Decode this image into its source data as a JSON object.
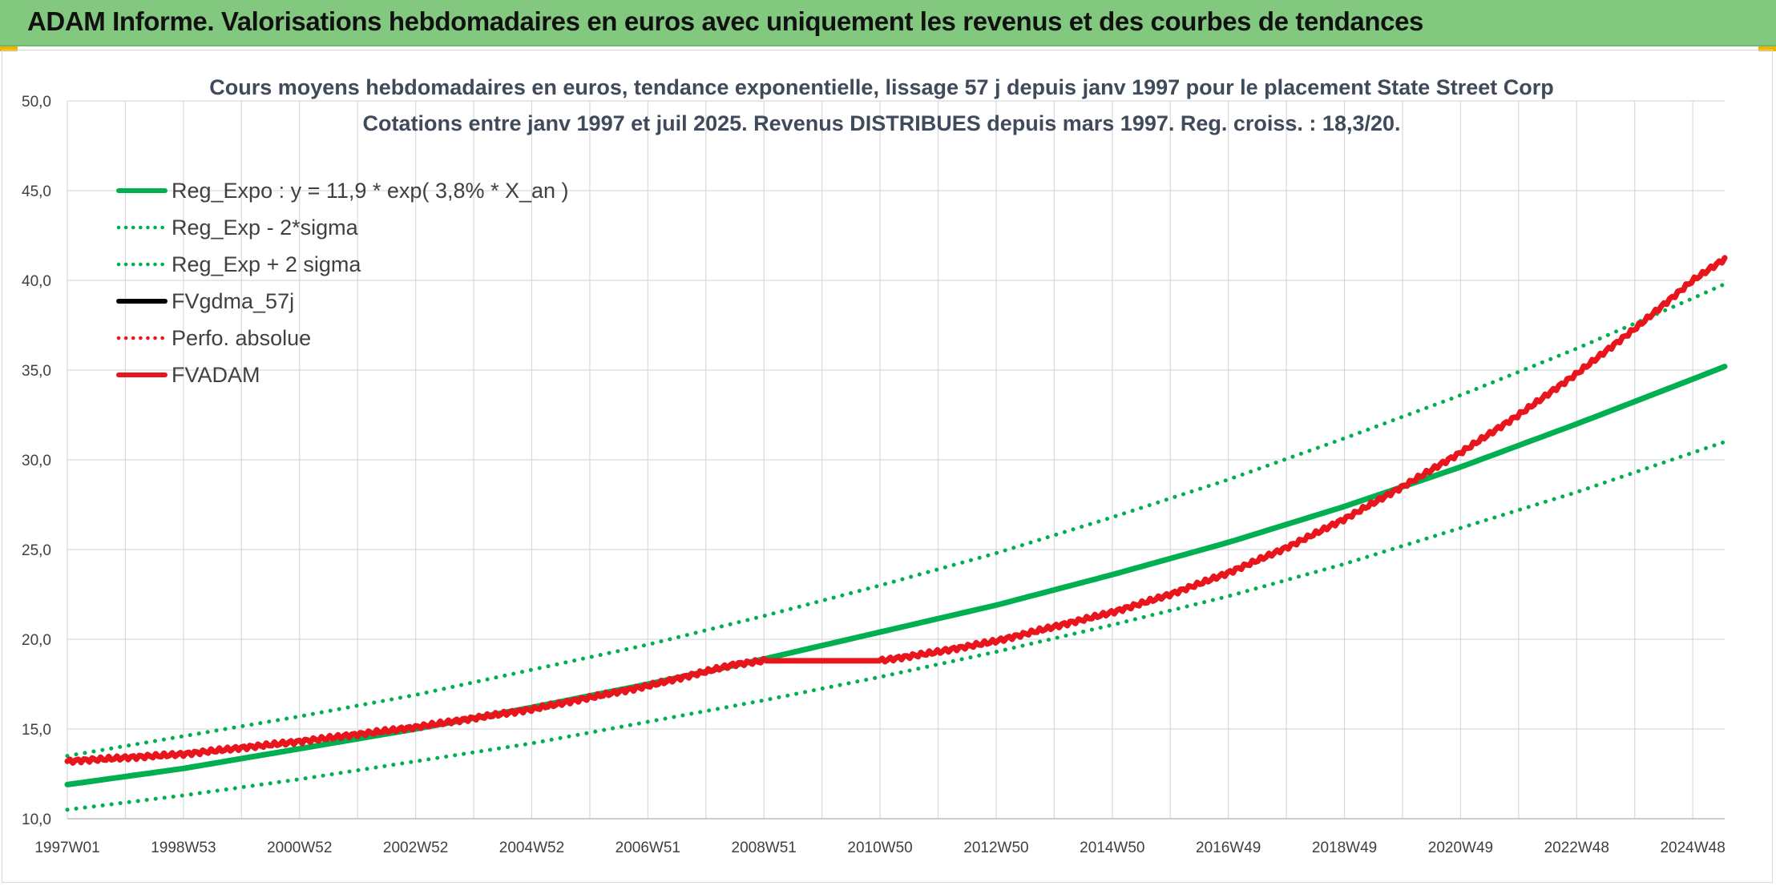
{
  "header": {
    "title": "ADAM Informe. Valorisations hebdomadaires en euros avec uniquement les revenus et des courbes de tendances"
  },
  "colors": {
    "banner": "#82c97f",
    "regression": "#00b050",
    "fvadam": "#e8161c",
    "fvgdma": "#000000",
    "perfo": "#e8161c",
    "grid": "#d9d9d9"
  },
  "chart_data": {
    "type": "line",
    "title": [
      "Cours moyens hebdomadaires en euros, tendance exponentielle, lissage 57 j depuis janv 1997 pour le placement State Street Corp",
      "Cotations entre janv 1997 et juil 2025. Revenus DISTRIBUES depuis mars 1997. Reg. croiss. : 18,3/20."
    ],
    "xlabel": "",
    "ylabel": "",
    "ylim": [
      10,
      50
    ],
    "yticks": [
      "10,0",
      "15,0",
      "20,0",
      "25,0",
      "30,0",
      "35,0",
      "40,0",
      "45,0",
      "50,0"
    ],
    "xlim": [
      1997.0,
      2025.55
    ],
    "xticks": [
      {
        "label": "1997W01",
        "x": 1997.0
      },
      {
        "label": "1998W53",
        "x": 1999.0
      },
      {
        "label": "2000W52",
        "x": 2001.0
      },
      {
        "label": "2002W52",
        "x": 2003.0
      },
      {
        "label": "2004W52",
        "x": 2005.0
      },
      {
        "label": "2006W51",
        "x": 2007.0
      },
      {
        "label": "2008W51",
        "x": 2009.0
      },
      {
        "label": "2010W50",
        "x": 2011.0
      },
      {
        "label": "2012W50",
        "x": 2013.0
      },
      {
        "label": "2014W50",
        "x": 2015.0
      },
      {
        "label": "2016W49",
        "x": 2017.0
      },
      {
        "label": "2018W49",
        "x": 2019.0
      },
      {
        "label": "2020W49",
        "x": 2021.0
      },
      {
        "label": "2022W48",
        "x": 2023.0
      },
      {
        "label": "2024W48",
        "x": 2025.0
      }
    ],
    "grid": true,
    "legend_position": "top-left",
    "series": [
      {
        "name": "Reg_Expo : y = 11,9 * exp( 3,8% *  X_an )",
        "style": "solid",
        "color": "#00b050",
        "points": [
          [
            1997.0,
            11.9
          ],
          [
            1999.0,
            12.8
          ],
          [
            2001.0,
            13.9
          ],
          [
            2003.0,
            15.0
          ],
          [
            2005.0,
            16.2
          ],
          [
            2007.0,
            17.5
          ],
          [
            2009.0,
            18.9
          ],
          [
            2011.0,
            20.4
          ],
          [
            2013.0,
            21.9
          ],
          [
            2015.0,
            23.6
          ],
          [
            2017.0,
            25.4
          ],
          [
            2019.0,
            27.4
          ],
          [
            2021.0,
            29.6
          ],
          [
            2023.0,
            32.0
          ],
          [
            2025.0,
            34.5
          ],
          [
            2025.55,
            35.2
          ]
        ]
      },
      {
        "name": "Reg_Exp - 2*sigma",
        "style": "dotted",
        "color": "#00b050",
        "points": [
          [
            1997.0,
            10.5
          ],
          [
            1999.0,
            11.3
          ],
          [
            2001.0,
            12.2
          ],
          [
            2003.0,
            13.2
          ],
          [
            2005.0,
            14.2
          ],
          [
            2007.0,
            15.4
          ],
          [
            2009.0,
            16.6
          ],
          [
            2011.0,
            17.9
          ],
          [
            2013.0,
            19.3
          ],
          [
            2015.0,
            20.8
          ],
          [
            2017.0,
            22.4
          ],
          [
            2019.0,
            24.2
          ],
          [
            2021.0,
            26.2
          ],
          [
            2023.0,
            28.2
          ],
          [
            2025.0,
            30.4
          ],
          [
            2025.55,
            31.0
          ]
        ]
      },
      {
        "name": "Reg_Exp + 2 sigma",
        "style": "dotted",
        "color": "#00b050",
        "points": [
          [
            1997.0,
            13.5
          ],
          [
            1999.0,
            14.6
          ],
          [
            2001.0,
            15.7
          ],
          [
            2003.0,
            16.9
          ],
          [
            2005.0,
            18.3
          ],
          [
            2007.0,
            19.7
          ],
          [
            2009.0,
            21.3
          ],
          [
            2011.0,
            23.0
          ],
          [
            2013.0,
            24.8
          ],
          [
            2015.0,
            26.8
          ],
          [
            2017.0,
            28.9
          ],
          [
            2019.0,
            31.2
          ],
          [
            2021.0,
            33.6
          ],
          [
            2023.0,
            36.2
          ],
          [
            2025.0,
            39.0
          ],
          [
            2025.55,
            39.8
          ]
        ]
      },
      {
        "name": "FVgdma_57j",
        "style": "solid",
        "color": "#000000",
        "points": []
      },
      {
        "name": "Perfo. absolue",
        "style": "dotted",
        "color": "#e8161c",
        "points": []
      },
      {
        "name": "FVADAM",
        "style": "solid",
        "color": "#e8161c",
        "points": [
          [
            1997.0,
            13.2
          ],
          [
            1999.0,
            13.6
          ],
          [
            2001.0,
            14.3
          ],
          [
            2003.0,
            15.1
          ],
          [
            2005.0,
            16.1
          ],
          [
            2007.0,
            17.4
          ],
          [
            2008.5,
            18.6
          ],
          [
            2009.0,
            18.8
          ],
          [
            2010.0,
            18.8
          ],
          [
            2011.0,
            18.8
          ],
          [
            2012.0,
            19.3
          ],
          [
            2013.0,
            19.9
          ],
          [
            2014.0,
            20.7
          ],
          [
            2015.0,
            21.5
          ],
          [
            2016.0,
            22.5
          ],
          [
            2017.0,
            23.7
          ],
          [
            2018.0,
            25.1
          ],
          [
            2019.0,
            26.7
          ],
          [
            2020.0,
            28.5
          ],
          [
            2021.0,
            30.4
          ],
          [
            2022.0,
            32.5
          ],
          [
            2023.0,
            34.8
          ],
          [
            2024.0,
            37.3
          ],
          [
            2025.0,
            40.0
          ],
          [
            2025.55,
            41.2
          ]
        ]
      }
    ]
  }
}
